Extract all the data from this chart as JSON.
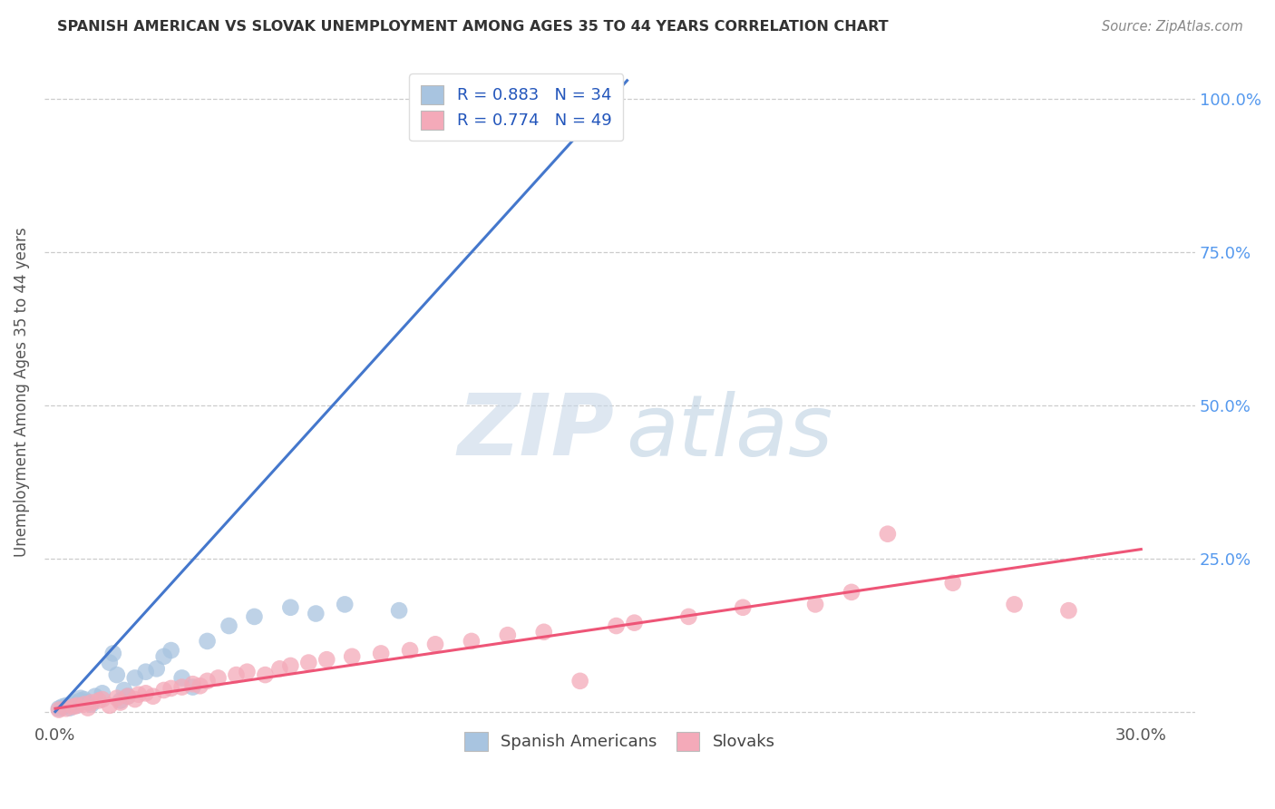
{
  "title": "SPANISH AMERICAN VS SLOVAK UNEMPLOYMENT AMONG AGES 35 TO 44 YEARS CORRELATION CHART",
  "source": "Source: ZipAtlas.com",
  "ylabel": "Unemployment Among Ages 35 to 44 years",
  "xlim": [
    -0.003,
    0.315
  ],
  "ylim": [
    -0.018,
    1.06
  ],
  "background_color": "#ffffff",
  "legend1_label": "R = 0.883   N = 34",
  "legend2_label": "R = 0.774   N = 49",
  "legend_bottom1": "Spanish Americans",
  "legend_bottom2": "Slovaks",
  "blue_color": "#a8c4e0",
  "pink_color": "#f4aab9",
  "blue_line_color": "#4477cc",
  "pink_line_color": "#ee5577",
  "blue_scatter_x": [
    0.001,
    0.002,
    0.003,
    0.004,
    0.005,
    0.005,
    0.006,
    0.007,
    0.007,
    0.008,
    0.009,
    0.01,
    0.011,
    0.013,
    0.015,
    0.016,
    0.017,
    0.018,
    0.019,
    0.02,
    0.022,
    0.025,
    0.028,
    0.03,
    0.032,
    0.035,
    0.038,
    0.042,
    0.048,
    0.055,
    0.065,
    0.072,
    0.08,
    0.095
  ],
  "blue_scatter_y": [
    0.005,
    0.008,
    0.01,
    0.006,
    0.012,
    0.015,
    0.01,
    0.018,
    0.022,
    0.02,
    0.015,
    0.012,
    0.025,
    0.03,
    0.08,
    0.095,
    0.06,
    0.018,
    0.035,
    0.025,
    0.055,
    0.065,
    0.07,
    0.09,
    0.1,
    0.055,
    0.04,
    0.115,
    0.14,
    0.155,
    0.17,
    0.16,
    0.175,
    0.165
  ],
  "pink_scatter_x": [
    0.001,
    0.003,
    0.005,
    0.006,
    0.008,
    0.009,
    0.01,
    0.012,
    0.013,
    0.015,
    0.017,
    0.018,
    0.02,
    0.022,
    0.023,
    0.025,
    0.027,
    0.03,
    0.032,
    0.035,
    0.038,
    0.04,
    0.042,
    0.045,
    0.05,
    0.053,
    0.058,
    0.062,
    0.065,
    0.07,
    0.075,
    0.082,
    0.09,
    0.098,
    0.105,
    0.115,
    0.125,
    0.135,
    0.145,
    0.155,
    0.16,
    0.175,
    0.19,
    0.21,
    0.22,
    0.23,
    0.248,
    0.265,
    0.28
  ],
  "pink_scatter_y": [
    0.003,
    0.005,
    0.008,
    0.01,
    0.012,
    0.006,
    0.015,
    0.018,
    0.02,
    0.01,
    0.022,
    0.015,
    0.025,
    0.02,
    0.028,
    0.03,
    0.025,
    0.035,
    0.038,
    0.04,
    0.045,
    0.042,
    0.05,
    0.055,
    0.06,
    0.065,
    0.06,
    0.07,
    0.075,
    0.08,
    0.085,
    0.09,
    0.095,
    0.1,
    0.11,
    0.115,
    0.125,
    0.13,
    0.05,
    0.14,
    0.145,
    0.155,
    0.17,
    0.175,
    0.195,
    0.29,
    0.21,
    0.175,
    0.165
  ],
  "blue_line": [
    [
      0.0,
      0.158
    ],
    [
      0.0,
      1.03
    ]
  ],
  "pink_line": [
    [
      0.0,
      0.3
    ],
    [
      0.005,
      0.265
    ]
  ],
  "y_ticks": [
    0.0,
    0.25,
    0.5,
    0.75,
    1.0
  ],
  "y_tick_labels": [
    "",
    "25.0%",
    "50.0%",
    "75.0%",
    "100.0%"
  ],
  "x_ticks": [
    0.0,
    0.1,
    0.2,
    0.3
  ],
  "x_tick_labels": [
    "0.0%",
    "",
    "",
    "30.0%"
  ]
}
